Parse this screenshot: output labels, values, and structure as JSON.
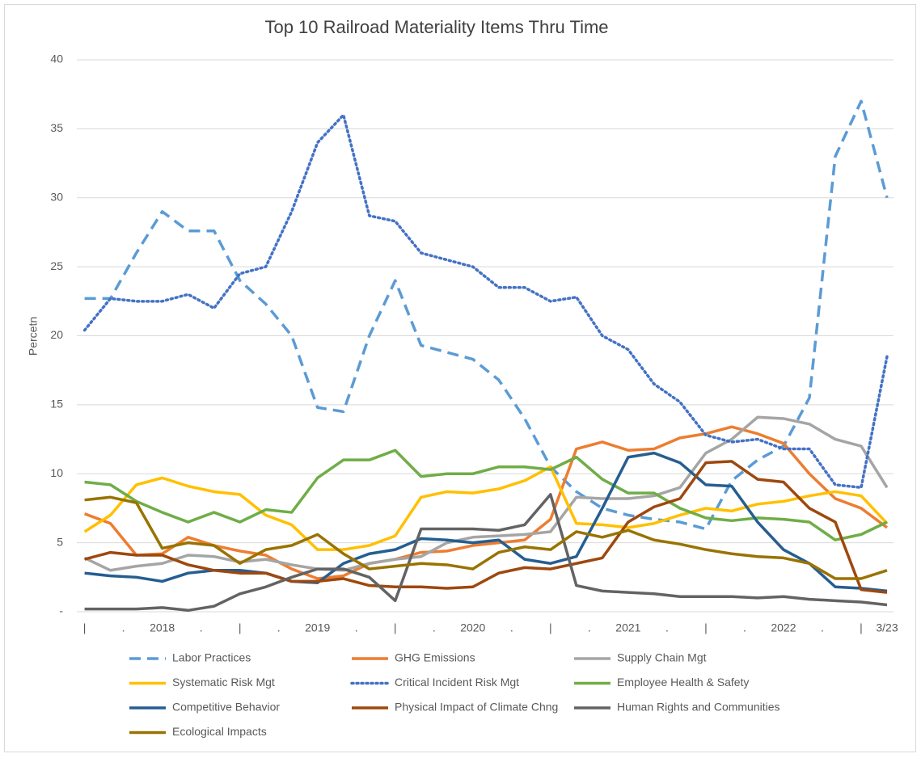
{
  "chart_data": {
    "type": "line",
    "title": "Top 10 Railroad Materiality Items Thru Time",
    "y_label": "Percetn",
    "x": [
      0,
      2,
      4,
      6,
      8,
      10,
      12,
      14,
      16,
      18,
      20,
      22,
      24,
      26,
      28,
      30,
      32,
      34,
      36,
      38,
      40,
      42,
      44,
      46,
      48,
      50,
      52,
      54,
      56,
      58,
      60,
      62
    ],
    "xlim": [
      -0.6,
      62.5
    ],
    "xticks": [
      {
        "value": 0,
        "label": "|"
      },
      {
        "value": 3,
        "label": "."
      },
      {
        "value": 6,
        "label": "2018"
      },
      {
        "value": 9,
        "label": "."
      },
      {
        "value": 12,
        "label": "|"
      },
      {
        "value": 15,
        "label": "."
      },
      {
        "value": 18,
        "label": "2019"
      },
      {
        "value": 21,
        "label": "."
      },
      {
        "value": 24,
        "label": "|"
      },
      {
        "value": 27,
        "label": "."
      },
      {
        "value": 30,
        "label": "2020"
      },
      {
        "value": 33,
        "label": "."
      },
      {
        "value": 36,
        "label": "|"
      },
      {
        "value": 39,
        "label": "."
      },
      {
        "value": 42,
        "label": "2021"
      },
      {
        "value": 45,
        "label": "."
      },
      {
        "value": 48,
        "label": "|"
      },
      {
        "value": 51,
        "label": "."
      },
      {
        "value": 54,
        "label": "2022"
      },
      {
        "value": 57,
        "label": "."
      },
      {
        "value": 60,
        "label": "|"
      },
      {
        "value": 62,
        "label": "3/23"
      }
    ],
    "ylim": [
      0,
      40
    ],
    "yticks": [
      {
        "value": 0,
        "label": "-"
      },
      5,
      10,
      15,
      20,
      25,
      30,
      35,
      40
    ],
    "grid": true,
    "series": [
      {
        "name": "Labor Practices",
        "color": "#5b9bd5",
        "style": "dashed",
        "values": [
          22.7,
          22.7,
          26,
          29,
          27.6,
          27.6,
          24,
          22.3,
          20,
          14.8,
          14.5,
          20,
          24,
          19.3,
          18.8,
          18.3,
          16.8,
          14,
          10.5,
          8.7,
          7.5,
          7,
          6.7,
          6.5,
          6,
          9.5,
          11,
          12,
          15.5,
          33,
          37,
          30
        ]
      },
      {
        "name": "GHG Emissions",
        "color": "#ed7d31",
        "style": "solid",
        "values": [
          7.1,
          6.4,
          4.1,
          4.2,
          5.4,
          4.8,
          4.4,
          4.1,
          3.1,
          2.4,
          2.6,
          3.5,
          3.8,
          4.3,
          4.4,
          4.8,
          5,
          5.2,
          6.7,
          11.8,
          12.3,
          11.7,
          11.8,
          12.6,
          12.9,
          13.4,
          12.9,
          12.2,
          10,
          8.2,
          7.5,
          6.1
        ]
      },
      {
        "name": "Supply Chain Mgt",
        "color": "#a5a5a5",
        "style": "solid",
        "values": [
          3.9,
          3,
          3.3,
          3.5,
          4.1,
          4,
          3.6,
          3.8,
          3.4,
          3.1,
          3,
          3.5,
          3.8,
          4,
          5,
          5.4,
          5.5,
          5.6,
          5.8,
          8.3,
          8.2,
          8.2,
          8.4,
          9,
          11.5,
          12.5,
          14.1,
          14,
          13.6,
          12.5,
          12,
          9
        ]
      },
      {
        "name": "Systematic Risk Mgt",
        "color": "#ffc000",
        "style": "solid",
        "values": [
          5.8,
          7,
          9.2,
          9.7,
          9.1,
          8.7,
          8.5,
          7,
          6.3,
          4.5,
          4.5,
          4.8,
          5.5,
          8.3,
          8.7,
          8.6,
          8.9,
          9.5,
          10.5,
          6.4,
          6.3,
          6.1,
          6.4,
          7,
          7.5,
          7.3,
          7.8,
          8,
          8.4,
          8.7,
          8.4,
          6.4
        ]
      },
      {
        "name": "Critical Incident Risk Mgt",
        "color": "#4472c4",
        "style": "dotted",
        "values": [
          20.4,
          22.7,
          22.5,
          22.5,
          23,
          22,
          24.5,
          25,
          29,
          34,
          36,
          28.7,
          28.3,
          26,
          25.5,
          25,
          23.5,
          23.5,
          22.5,
          22.8,
          20,
          19,
          16.5,
          15.2,
          12.8,
          12.3,
          12.5,
          11.8,
          11.8,
          9.2,
          9,
          18.5
        ]
      },
      {
        "name": "Employee Health & Safety",
        "color": "#70ad47",
        "style": "solid",
        "values": [
          9.4,
          9.2,
          8,
          7.2,
          6.5,
          7.2,
          6.5,
          7.4,
          7.2,
          9.7,
          11,
          11,
          11.7,
          9.8,
          10,
          10,
          10.5,
          10.5,
          10.3,
          11.2,
          9.6,
          8.6,
          8.6,
          7.5,
          6.8,
          6.6,
          6.8,
          6.7,
          6.5,
          5.2,
          5.6,
          6.5
        ]
      },
      {
        "name": "Competitive Behavior",
        "color": "#255e91",
        "style": "solid",
        "values": [
          2.8,
          2.6,
          2.5,
          2.2,
          2.8,
          3,
          3,
          2.8,
          2.2,
          2.1,
          3.5,
          4.2,
          4.5,
          5.3,
          5.2,
          5,
          5.2,
          3.8,
          3.5,
          4,
          7.5,
          11.2,
          11.5,
          10.8,
          9.2,
          9.1,
          6.5,
          4.5,
          3.5,
          1.8,
          1.7,
          1.5
        ]
      },
      {
        "name": "Physical Impact of Climate Chng",
        "color": "#9e480e",
        "style": "solid",
        "values": [
          3.8,
          4.3,
          4.1,
          4.1,
          3.4,
          3,
          2.8,
          2.8,
          2.2,
          2.2,
          2.4,
          1.9,
          1.8,
          1.8,
          1.7,
          1.8,
          2.8,
          3.2,
          3.1,
          3.5,
          3.9,
          6.5,
          7.6,
          8.2,
          10.8,
          10.9,
          9.6,
          9.4,
          7.5,
          6.5,
          1.6,
          1.4
        ]
      },
      {
        "name": "Human Rights and Communities",
        "color": "#636363",
        "style": "solid",
        "values": [
          0.2,
          0.2,
          0.2,
          0.3,
          0.1,
          0.4,
          1.3,
          1.8,
          2.5,
          3.1,
          3.1,
          2.5,
          0.8,
          6,
          6,
          6,
          5.9,
          6.3,
          8.5,
          1.9,
          1.5,
          1.4,
          1.3,
          1.1,
          1.1,
          1.1,
          1,
          1.1,
          0.9,
          0.8,
          0.7,
          0.5
        ]
      },
      {
        "name": "Ecological Impacts",
        "color": "#997300",
        "style": "solid",
        "values": [
          8.1,
          8.3,
          7.9,
          4.6,
          5,
          4.8,
          3.5,
          4.5,
          4.8,
          5.6,
          4.2,
          3.1,
          3.3,
          3.5,
          3.4,
          3.1,
          4.3,
          4.7,
          4.5,
          5.8,
          5.4,
          5.9,
          5.2,
          4.9,
          4.5,
          4.2,
          4,
          3.9,
          3.5,
          2.4,
          2.4,
          3
        ]
      }
    ]
  }
}
